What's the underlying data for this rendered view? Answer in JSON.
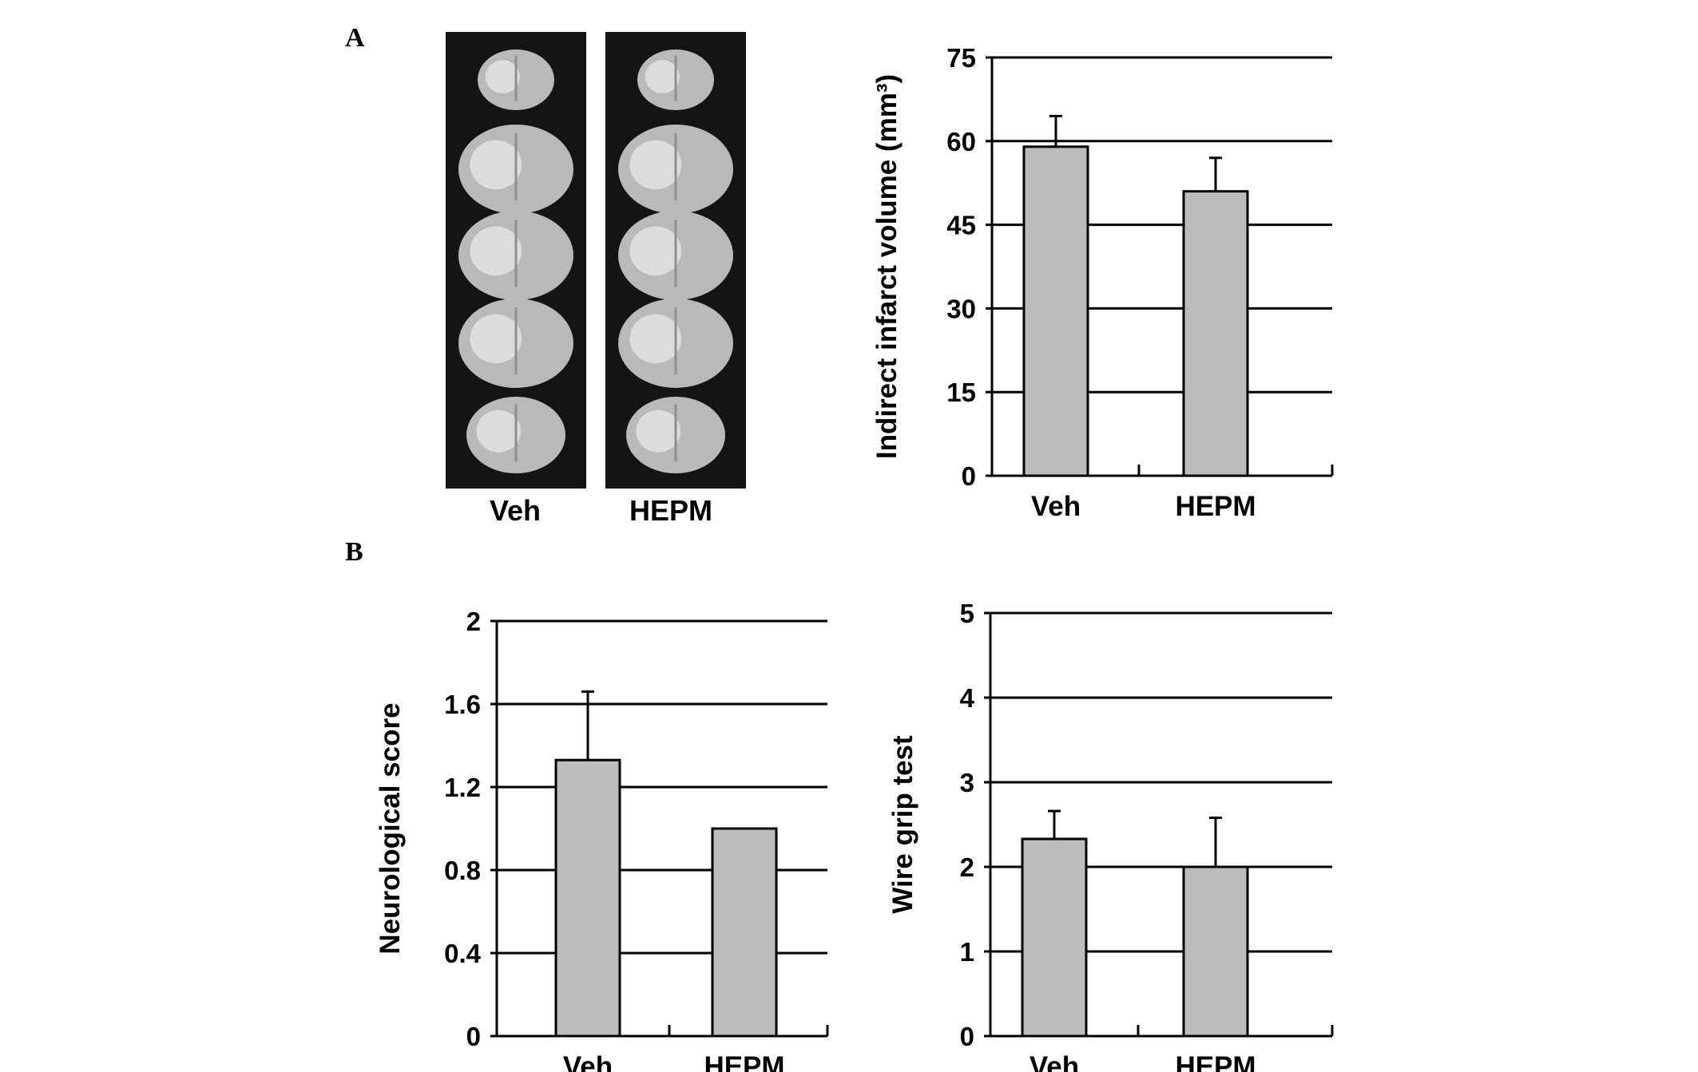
{
  "panels": {
    "a": "A",
    "b": "B"
  },
  "image_strips": [
    {
      "label": "Veh",
      "slices": 5
    },
    {
      "label": "HEPM",
      "slices": 5
    }
  ],
  "chart_data": [
    {
      "type": "bar",
      "panel": "A",
      "categories": [
        "Veh",
        "HEPM"
      ],
      "values": [
        59,
        51
      ],
      "errors": [
        5.5,
        6
      ],
      "ylabel": "Indirect infarct volume (mm³)",
      "ylim": [
        0,
        75
      ],
      "yticks": [
        "0",
        "15",
        "30",
        "45",
        "60",
        "75"
      ],
      "grid": true,
      "bar_color": "#bcbcbc"
    },
    {
      "type": "bar",
      "panel": "B",
      "categories": [
        "Veh",
        "HEPM"
      ],
      "values": [
        1.33,
        1.0
      ],
      "errors": [
        0.33,
        0
      ],
      "ylabel": "Neurological score",
      "ylim": [
        0,
        2
      ],
      "yticks": [
        "0",
        "0.4",
        "0.8",
        "1.2",
        "1.6",
        "2"
      ],
      "grid": true,
      "bar_color": "#bcbcbc"
    },
    {
      "type": "bar",
      "panel": "B",
      "categories": [
        "Veh",
        "HEPM"
      ],
      "values": [
        2.33,
        2.0
      ],
      "errors": [
        0.33,
        0.58
      ],
      "ylabel": "Wire grip test",
      "ylim": [
        0,
        5
      ],
      "yticks": [
        "0",
        "1",
        "2",
        "3",
        "4",
        "5"
      ],
      "grid": true,
      "bar_color": "#bcbcbc"
    }
  ]
}
